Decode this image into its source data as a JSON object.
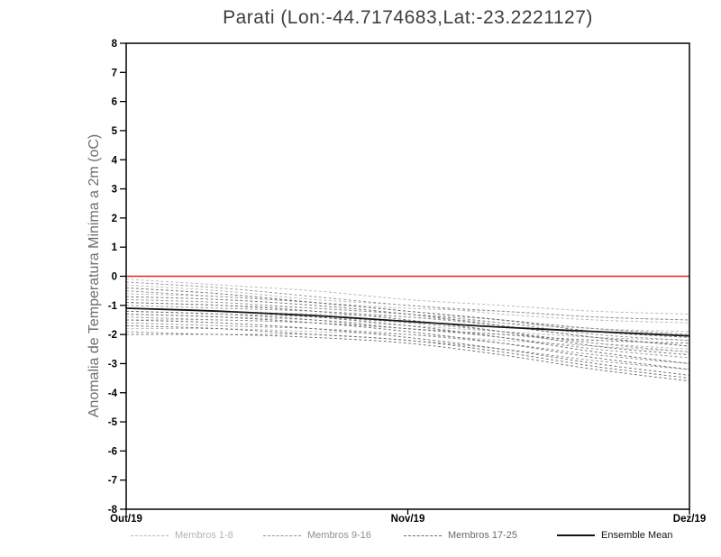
{
  "title": "Parati (Lon:-44.7174683,Lat:-23.2221127)",
  "y_axis_label": "Anomalia de Temperatura Minima a 2m (oC)",
  "colors": {
    "frame": "#000000",
    "tick_text": "#000000",
    "title_text": "#3d3d3d",
    "y_axis_label_text": "#6f6f6f",
    "zero_line": "#e8241c",
    "members_1_8": "#b4b4b4",
    "members_9_16": "#8f8f8f",
    "members_17_25": "#6a6a6a",
    "ensemble_mean": "#141414"
  },
  "legend": [
    {
      "label": "Membros 1-8",
      "color": "#b4b4b4",
      "dashed": true
    },
    {
      "label": "Membros 9-16",
      "color": "#8f8f8f",
      "dashed": true
    },
    {
      "label": "Membros 17-25",
      "color": "#6a6a6a",
      "dashed": true
    },
    {
      "label": "Ensemble Mean",
      "color": "#141414",
      "dashed": false
    }
  ],
  "chart_data": {
    "type": "line",
    "title": "Parati (Lon:-44.7174683,Lat:-23.2221127)",
    "xlabel": "",
    "ylabel": "Anomalia de Temperatura Minima a 2m (oC)",
    "ylim": [
      -8,
      8
    ],
    "y_ticks": [
      8,
      7,
      6,
      5,
      4,
      3,
      2,
      1,
      0,
      -1,
      -2,
      -3,
      -4,
      -5,
      -6,
      -7,
      -8
    ],
    "x_tick_labels": [
      "Out/19",
      "Nov/19",
      "Dez/19"
    ],
    "x_tick_positions": [
      0,
      0.5,
      1
    ],
    "x": [
      0,
      0.1667,
      0.3333,
      0.5,
      0.6667,
      0.8333,
      1
    ],
    "zero_line_value": 0,
    "grid": false,
    "legend_position": "bottom",
    "groups": [
      {
        "name": "Membros 1-8",
        "color": "#b4b4b4",
        "series": [
          [
            -0.1,
            -0.3,
            -0.5,
            -0.8,
            -1.0,
            -1.2,
            -1.3
          ],
          [
            -0.3,
            -0.5,
            -0.8,
            -1.0,
            -1.3,
            -1.5,
            -1.6
          ],
          [
            -0.6,
            -0.7,
            -0.9,
            -1.1,
            -1.2,
            -1.4,
            -1.5
          ],
          [
            -0.9,
            -1.0,
            -1.1,
            -1.3,
            -1.5,
            -1.8,
            -2.0
          ],
          [
            -1.1,
            -1.2,
            -1.3,
            -1.4,
            -1.6,
            -1.8,
            -1.9
          ],
          [
            -1.3,
            -1.4,
            -1.5,
            -1.7,
            -1.9,
            -2.1,
            -2.2
          ],
          [
            -1.5,
            -1.5,
            -1.6,
            -1.8,
            -2.0,
            -2.3,
            -2.5
          ],
          [
            -1.8,
            -1.8,
            -1.9,
            -2.0,
            -2.2,
            -2.4,
            -2.6
          ]
        ]
      },
      {
        "name": "Membros 9-16",
        "color": "#8f8f8f",
        "series": [
          [
            -0.2,
            -0.4,
            -0.7,
            -1.0,
            -1.2,
            -1.4,
            -1.5
          ],
          [
            -0.5,
            -0.7,
            -0.9,
            -1.2,
            -1.5,
            -1.8,
            -2.0
          ],
          [
            -0.8,
            -0.9,
            -1.1,
            -1.3,
            -1.6,
            -2.0,
            -2.2
          ],
          [
            -1.0,
            -1.1,
            -1.2,
            -1.4,
            -1.7,
            -2.1,
            -2.4
          ],
          [
            -1.2,
            -1.3,
            -1.4,
            -1.6,
            -1.9,
            -2.3,
            -2.6
          ],
          [
            -1.4,
            -1.5,
            -1.6,
            -1.8,
            -2.1,
            -2.5,
            -2.8
          ],
          [
            -1.6,
            -1.7,
            -1.8,
            -2.0,
            -2.3,
            -2.7,
            -3.0
          ],
          [
            -1.9,
            -2.0,
            -2.0,
            -2.2,
            -2.5,
            -2.9,
            -3.2
          ]
        ]
      },
      {
        "name": "Membros 17-25",
        "color": "#6a6a6a",
        "series": [
          [
            -0.4,
            -0.6,
            -0.9,
            -1.2,
            -1.5,
            -1.9,
            -2.1
          ],
          [
            -0.7,
            -0.8,
            -1.0,
            -1.3,
            -1.7,
            -2.1,
            -2.4
          ],
          [
            -0.9,
            -1.0,
            -1.2,
            -1.5,
            -1.9,
            -2.4,
            -2.7
          ],
          [
            -1.1,
            -1.2,
            -1.4,
            -1.7,
            -2.1,
            -2.6,
            -3.0
          ],
          [
            -1.3,
            -1.4,
            -1.6,
            -1.9,
            -2.3,
            -2.8,
            -3.2
          ],
          [
            -1.5,
            -1.6,
            -1.8,
            -2.1,
            -2.5,
            -3.0,
            -3.4
          ],
          [
            -1.7,
            -1.8,
            -2.0,
            -2.2,
            -2.6,
            -3.1,
            -3.5
          ],
          [
            -2.0,
            -2.0,
            -2.1,
            -2.3,
            -2.7,
            -3.2,
            -3.6
          ],
          [
            -1.2,
            -1.3,
            -1.5,
            -1.8,
            -2.0,
            -2.2,
            -2.3
          ]
        ]
      }
    ],
    "ensemble_mean": {
      "name": "Ensemble Mean",
      "color": "#141414",
      "values": [
        -1.1,
        -1.2,
        -1.35,
        -1.55,
        -1.75,
        -1.9,
        -2.05
      ]
    }
  }
}
